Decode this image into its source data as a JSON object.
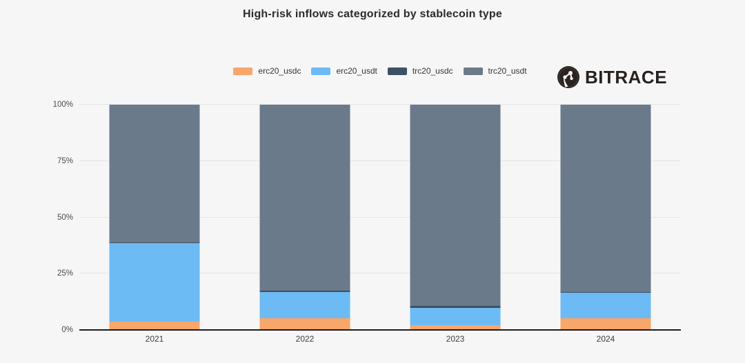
{
  "title": "High-risk inflows categorized by stablecoin type",
  "logo": {
    "text": "BITRACE"
  },
  "colors": {
    "background": "#f6f6f7",
    "gridline": "#e4e4e7",
    "axis_line": "#1c1c1c",
    "title_text": "#2b2b2b",
    "logo_text": "#27211e"
  },
  "chart_data": {
    "type": "bar",
    "stacked": true,
    "unit": "percent",
    "title": "High-risk inflows categorized by stablecoin type",
    "categories": [
      "2021",
      "2022",
      "2023",
      "2024"
    ],
    "series": [
      {
        "name": "erc20_usdc",
        "color": "#f9a66a",
        "values": [
          3.7,
          5.2,
          2.2,
          5.2
        ]
      },
      {
        "name": "erc20_usdt",
        "color": "#6cbbf5",
        "values": [
          34.8,
          11.7,
          7.6,
          11.3
        ]
      },
      {
        "name": "trc20_usdc",
        "color": "#3e5064",
        "values": [
          0.4,
          0.4,
          1.0,
          0.4
        ]
      },
      {
        "name": "trc20_usdt",
        "color": "#6b7a8a",
        "values": [
          61.1,
          82.7,
          89.2,
          83.1
        ]
      }
    ],
    "xlabel": "",
    "ylabel": "",
    "ylim": [
      0,
      100
    ],
    "yticks": [
      {
        "value": 0,
        "label": "0%"
      },
      {
        "value": 25,
        "label": "25%"
      },
      {
        "value": 50,
        "label": "50%"
      },
      {
        "value": 75,
        "label": "75%"
      },
      {
        "value": 100,
        "label": "100%"
      }
    ],
    "grid": true,
    "legend_position": "top-center"
  }
}
